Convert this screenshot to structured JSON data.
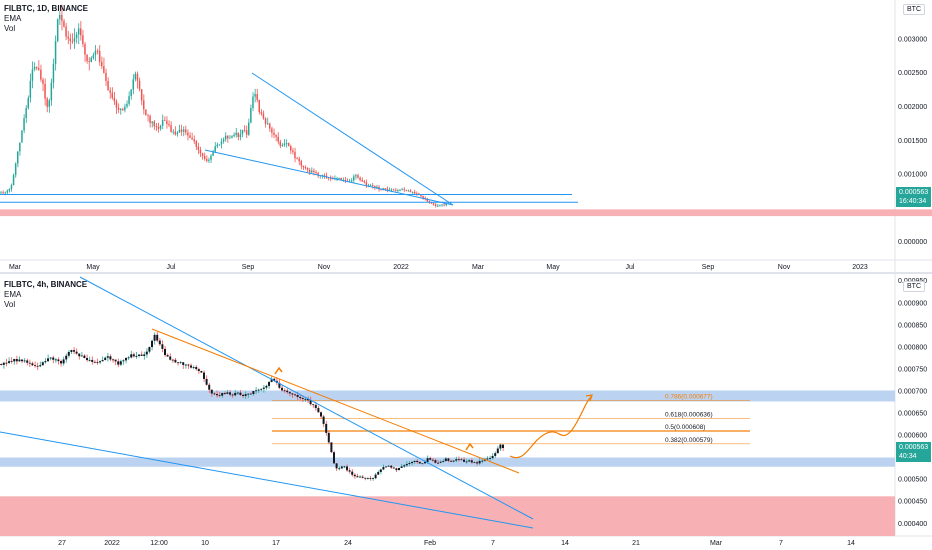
{
  "colors": {
    "candle_up": "#26a69a",
    "candle_down": "#ef5350",
    "candle_body": "#131722",
    "trendline": "#2196f3",
    "support_blue_band": "#bbd3f0",
    "resistance_red_band": "#f7b1b4",
    "fib_orange": "#f57c00",
    "price_tag": "#26a69a"
  },
  "top_pane": {
    "legend": {
      "symbol": "FILBTC, 1D, BINANCE",
      "ema": "EMA",
      "vol": "Vol"
    },
    "unit": "BTC",
    "price_labels": [
      "0.003000",
      "0.002500",
      "0.002000",
      "0.001500",
      "0.001000",
      "0.000000"
    ],
    "price_tag": {
      "value": "0.000563",
      "countdown": "16:40:34"
    },
    "time_labels": [
      "Mar",
      "May",
      "Jul",
      "Sep",
      "Nov",
      "2022",
      "Mar",
      "May",
      "Jul",
      "Sep",
      "Nov",
      "2023"
    ]
  },
  "bottom_pane": {
    "legend": {
      "symbol": "FILBTC, 4h, BINANCE",
      "ema": "EMA",
      "vol": "Vol"
    },
    "unit": "BTC",
    "price_labels": [
      "0.000950",
      "0.000900",
      "0.000850",
      "0.000800",
      "0.000750",
      "0.000700",
      "0.000650",
      "0.000600",
      "0.000500",
      "0.000450",
      "0.000400"
    ],
    "price_tag": {
      "value": "0.000563",
      "countdown": "40:34"
    },
    "time_labels": [
      "27",
      "2022",
      "12:00",
      "10",
      "17",
      "24",
      "Feb",
      "7",
      "14",
      "21",
      "Mar",
      "7",
      "14"
    ],
    "fib_labels": [
      "0.786(0.000677)",
      "0.618(0.000636)",
      "0.5(0.000608)",
      "0.382(0.000579)"
    ]
  },
  "chart_data": [
    {
      "type": "candlestick",
      "title": "FILBTC, 1D, BINANCE",
      "ylabel": "BTC",
      "ylim": [
        -0.00025,
        0.00345
      ],
      "x_ticks": [
        "Mar",
        "May",
        "Jul",
        "Sep",
        "Nov",
        "2022",
        "Mar",
        "May",
        "Jul",
        "Sep",
        "Nov",
        "2023"
      ],
      "close_path": [
        [
          0,
          0.00072
        ],
        [
          6,
          0.00073
        ],
        [
          10,
          0.0008
        ],
        [
          14,
          0.0011
        ],
        [
          18,
          0.0014
        ],
        [
          22,
          0.00175
        ],
        [
          26,
          0.002
        ],
        [
          30,
          0.0024
        ],
        [
          34,
          0.00265
        ],
        [
          38,
          0.00255
        ],
        [
          42,
          0.0023
        ],
        [
          46,
          0.00195
        ],
        [
          50,
          0.00225
        ],
        [
          54,
          0.00285
        ],
        [
          58,
          0.0034
        ],
        [
          62,
          0.0032
        ],
        [
          66,
          0.00305
        ],
        [
          70,
          0.003
        ],
        [
          74,
          0.00295
        ],
        [
          78,
          0.0031
        ],
        [
          82,
          0.0029
        ],
        [
          86,
          0.00265
        ],
        [
          90,
          0.0027
        ],
        [
          94,
          0.0028
        ],
        [
          98,
          0.00275
        ],
        [
          102,
          0.0025
        ],
        [
          106,
          0.0023
        ],
        [
          110,
          0.00215
        ],
        [
          114,
          0.00205
        ],
        [
          118,
          0.0019
        ],
        [
          122,
          0.00195
        ],
        [
          126,
          0.00205
        ],
        [
          130,
          0.0022
        ],
        [
          134,
          0.0025
        ],
        [
          138,
          0.0023
        ],
        [
          142,
          0.002
        ],
        [
          146,
          0.00185
        ],
        [
          150,
          0.00175
        ],
        [
          154,
          0.0017
        ],
        [
          158,
          0.00165
        ],
        [
          162,
          0.0018
        ],
        [
          166,
          0.00175
        ],
        [
          170,
          0.00165
        ],
        [
          174,
          0.0016
        ],
        [
          178,
          0.00165
        ],
        [
          182,
          0.00165
        ],
        [
          186,
          0.0016
        ],
        [
          190,
          0.0015
        ],
        [
          194,
          0.00145
        ],
        [
          198,
          0.00135
        ],
        [
          202,
          0.00125
        ],
        [
          206,
          0.0012
        ],
        [
          210,
          0.00125
        ],
        [
          214,
          0.0014
        ],
        [
          218,
          0.00145
        ],
        [
          222,
          0.0015
        ],
        [
          226,
          0.00155
        ],
        [
          230,
          0.00155
        ],
        [
          234,
          0.0016
        ],
        [
          238,
          0.00155
        ],
        [
          242,
          0.00165
        ],
        [
          246,
          0.0016
        ],
        [
          250,
          0.002
        ],
        [
          254,
          0.0022
        ],
        [
          258,
          0.00195
        ],
        [
          262,
          0.0018
        ],
        [
          266,
          0.00175
        ],
        [
          270,
          0.00165
        ],
        [
          274,
          0.00155
        ],
        [
          278,
          0.00145
        ],
        [
          282,
          0.0014
        ],
        [
          286,
          0.00145
        ],
        [
          290,
          0.00135
        ],
        [
          294,
          0.00125
        ],
        [
          298,
          0.00118
        ],
        [
          302,
          0.0011
        ],
        [
          306,
          0.00105
        ],
        [
          310,
          0.00103
        ],
        [
          314,
          0.001
        ],
        [
          318,
          0.00098
        ],
        [
          322,
          0.00097
        ],
        [
          326,
          0.00095
        ],
        [
          330,
          0.00093
        ],
        [
          334,
          0.00092
        ],
        [
          338,
          0.00092
        ],
        [
          342,
          0.0009
        ],
        [
          346,
          0.00088
        ],
        [
          350,
          0.0009
        ],
        [
          354,
          0.00098
        ],
        [
          358,
          0.00093
        ],
        [
          362,
          0.00087
        ],
        [
          366,
          0.00083
        ],
        [
          370,
          0.00082
        ],
        [
          374,
          0.0008
        ],
        [
          378,
          0.00078
        ],
        [
          382,
          0.00077
        ],
        [
          386,
          0.00076
        ],
        [
          390,
          0.00078
        ],
        [
          394,
          0.00076
        ],
        [
          398,
          0.00075
        ],
        [
          402,
          0.00077
        ],
        [
          406,
          0.00075
        ],
        [
          410,
          0.00073
        ],
        [
          414,
          0.0007
        ],
        [
          418,
          0.00068
        ],
        [
          422,
          0.00064
        ],
        [
          426,
          0.0006
        ],
        [
          430,
          0.00056
        ],
        [
          434,
          0.00053
        ],
        [
          438,
          0.00052
        ],
        [
          442,
          0.00054
        ],
        [
          446,
          0.00055
        ],
        [
          450,
          0.000563
        ]
      ],
      "support_lines": [
        0.00069,
        0.000575
      ],
      "resistance_band": [
        0.00037,
        0.00047
      ],
      "current_price": 0.000563
    },
    {
      "type": "candlestick",
      "title": "FILBTC, 4h, BINANCE",
      "ylabel": "BTC",
      "ylim": [
        0.00037,
        0.000955
      ],
      "x_ticks": [
        "27",
        "2022",
        "12:00",
        "10",
        "17",
        "24",
        "Feb",
        "7",
        "14",
        "21",
        "Mar",
        "7",
        "14"
      ],
      "close_path": [
        [
          0,
          0.00076
        ],
        [
          6,
          0.000765
        ],
        [
          12,
          0.00077
        ],
        [
          18,
          0.000768
        ],
        [
          24,
          0.000765
        ],
        [
          30,
          0.00076
        ],
        [
          36,
          0.000755
        ],
        [
          42,
          0.000762
        ],
        [
          48,
          0.000775
        ],
        [
          54,
          0.00077
        ],
        [
          60,
          0.00076
        ],
        [
          66,
          0.000785
        ],
        [
          70,
          0.00079
        ],
        [
          76,
          0.00078
        ],
        [
          82,
          0.000775
        ],
        [
          88,
          0.00077
        ],
        [
          94,
          0.000765
        ],
        [
          100,
          0.00077
        ],
        [
          106,
          0.000775
        ],
        [
          112,
          0.00077
        ],
        [
          118,
          0.00076
        ],
        [
          124,
          0.000775
        ],
        [
          130,
          0.00078
        ],
        [
          136,
          0.00078
        ],
        [
          142,
          0.000775
        ],
        [
          148,
          0.0008
        ],
        [
          153,
          0.000825
        ],
        [
          158,
          0.000805
        ],
        [
          164,
          0.00078
        ],
        [
          170,
          0.00077
        ],
        [
          176,
          0.000765
        ],
        [
          182,
          0.00076
        ],
        [
          188,
          0.000755
        ],
        [
          194,
          0.00075
        ],
        [
          200,
          0.00074
        ],
        [
          206,
          0.00071
        ],
        [
          212,
          0.00069
        ],
        [
          218,
          0.00069
        ],
        [
          224,
          0.000695
        ],
        [
          230,
          0.00069
        ],
        [
          236,
          0.000695
        ],
        [
          242,
          0.00069
        ],
        [
          248,
          0.00069
        ],
        [
          254,
          0.0007
        ],
        [
          260,
          0.000705
        ],
        [
          266,
          0.00071
        ],
        [
          270,
          0.00073
        ],
        [
          274,
          0.00072
        ],
        [
          280,
          0.0007
        ],
        [
          286,
          0.000695
        ],
        [
          292,
          0.00069
        ],
        [
          298,
          0.000685
        ],
        [
          304,
          0.00068
        ],
        [
          310,
          0.00067
        ],
        [
          316,
          0.000655
        ],
        [
          320,
          0.00064
        ],
        [
          324,
          0.00061
        ],
        [
          328,
          0.00058
        ],
        [
          332,
          0.00054
        ],
        [
          336,
          0.00052
        ],
        [
          342,
          0.00053
        ],
        [
          348,
          0.000515
        ],
        [
          354,
          0.000505
        ],
        [
          360,
          0.000505
        ],
        [
          366,
          0.0005
        ],
        [
          372,
          0.0005
        ],
        [
          378,
          0.00052
        ],
        [
          384,
          0.00053
        ],
        [
          390,
          0.000525
        ],
        [
          396,
          0.00052
        ],
        [
          402,
          0.00053
        ],
        [
          408,
          0.000535
        ],
        [
          414,
          0.00054
        ],
        [
          420,
          0.00053
        ],
        [
          426,
          0.000545
        ],
        [
          432,
          0.00054
        ],
        [
          438,
          0.000535
        ],
        [
          444,
          0.000545
        ],
        [
          450,
          0.00054
        ],
        [
          456,
          0.000545
        ],
        [
          462,
          0.00054
        ],
        [
          468,
          0.00054
        ],
        [
          474,
          0.000535
        ],
        [
          480,
          0.00054
        ],
        [
          486,
          0.000545
        ],
        [
          492,
          0.00055
        ],
        [
          496,
          0.000565
        ],
        [
          500,
          0.00058
        ],
        [
          503,
          0.000563
        ]
      ],
      "support_band": [
        0.000675,
        0.0007
      ],
      "support_band_low": [
        0.000527,
        0.000548
      ],
      "resistance_band": [
        0.00037,
        0.00046
      ],
      "fibonacci": [
        {
          "label": "0.786(0.000677)",
          "value": 0.000677
        },
        {
          "label": "0.618(0.000636)",
          "value": 0.000636
        },
        {
          "label": "0.5(0.000608)",
          "value": 0.000608
        },
        {
          "label": "0.382(0.000579)",
          "value": 0.000579
        }
      ],
      "current_price": 0.000563
    }
  ]
}
